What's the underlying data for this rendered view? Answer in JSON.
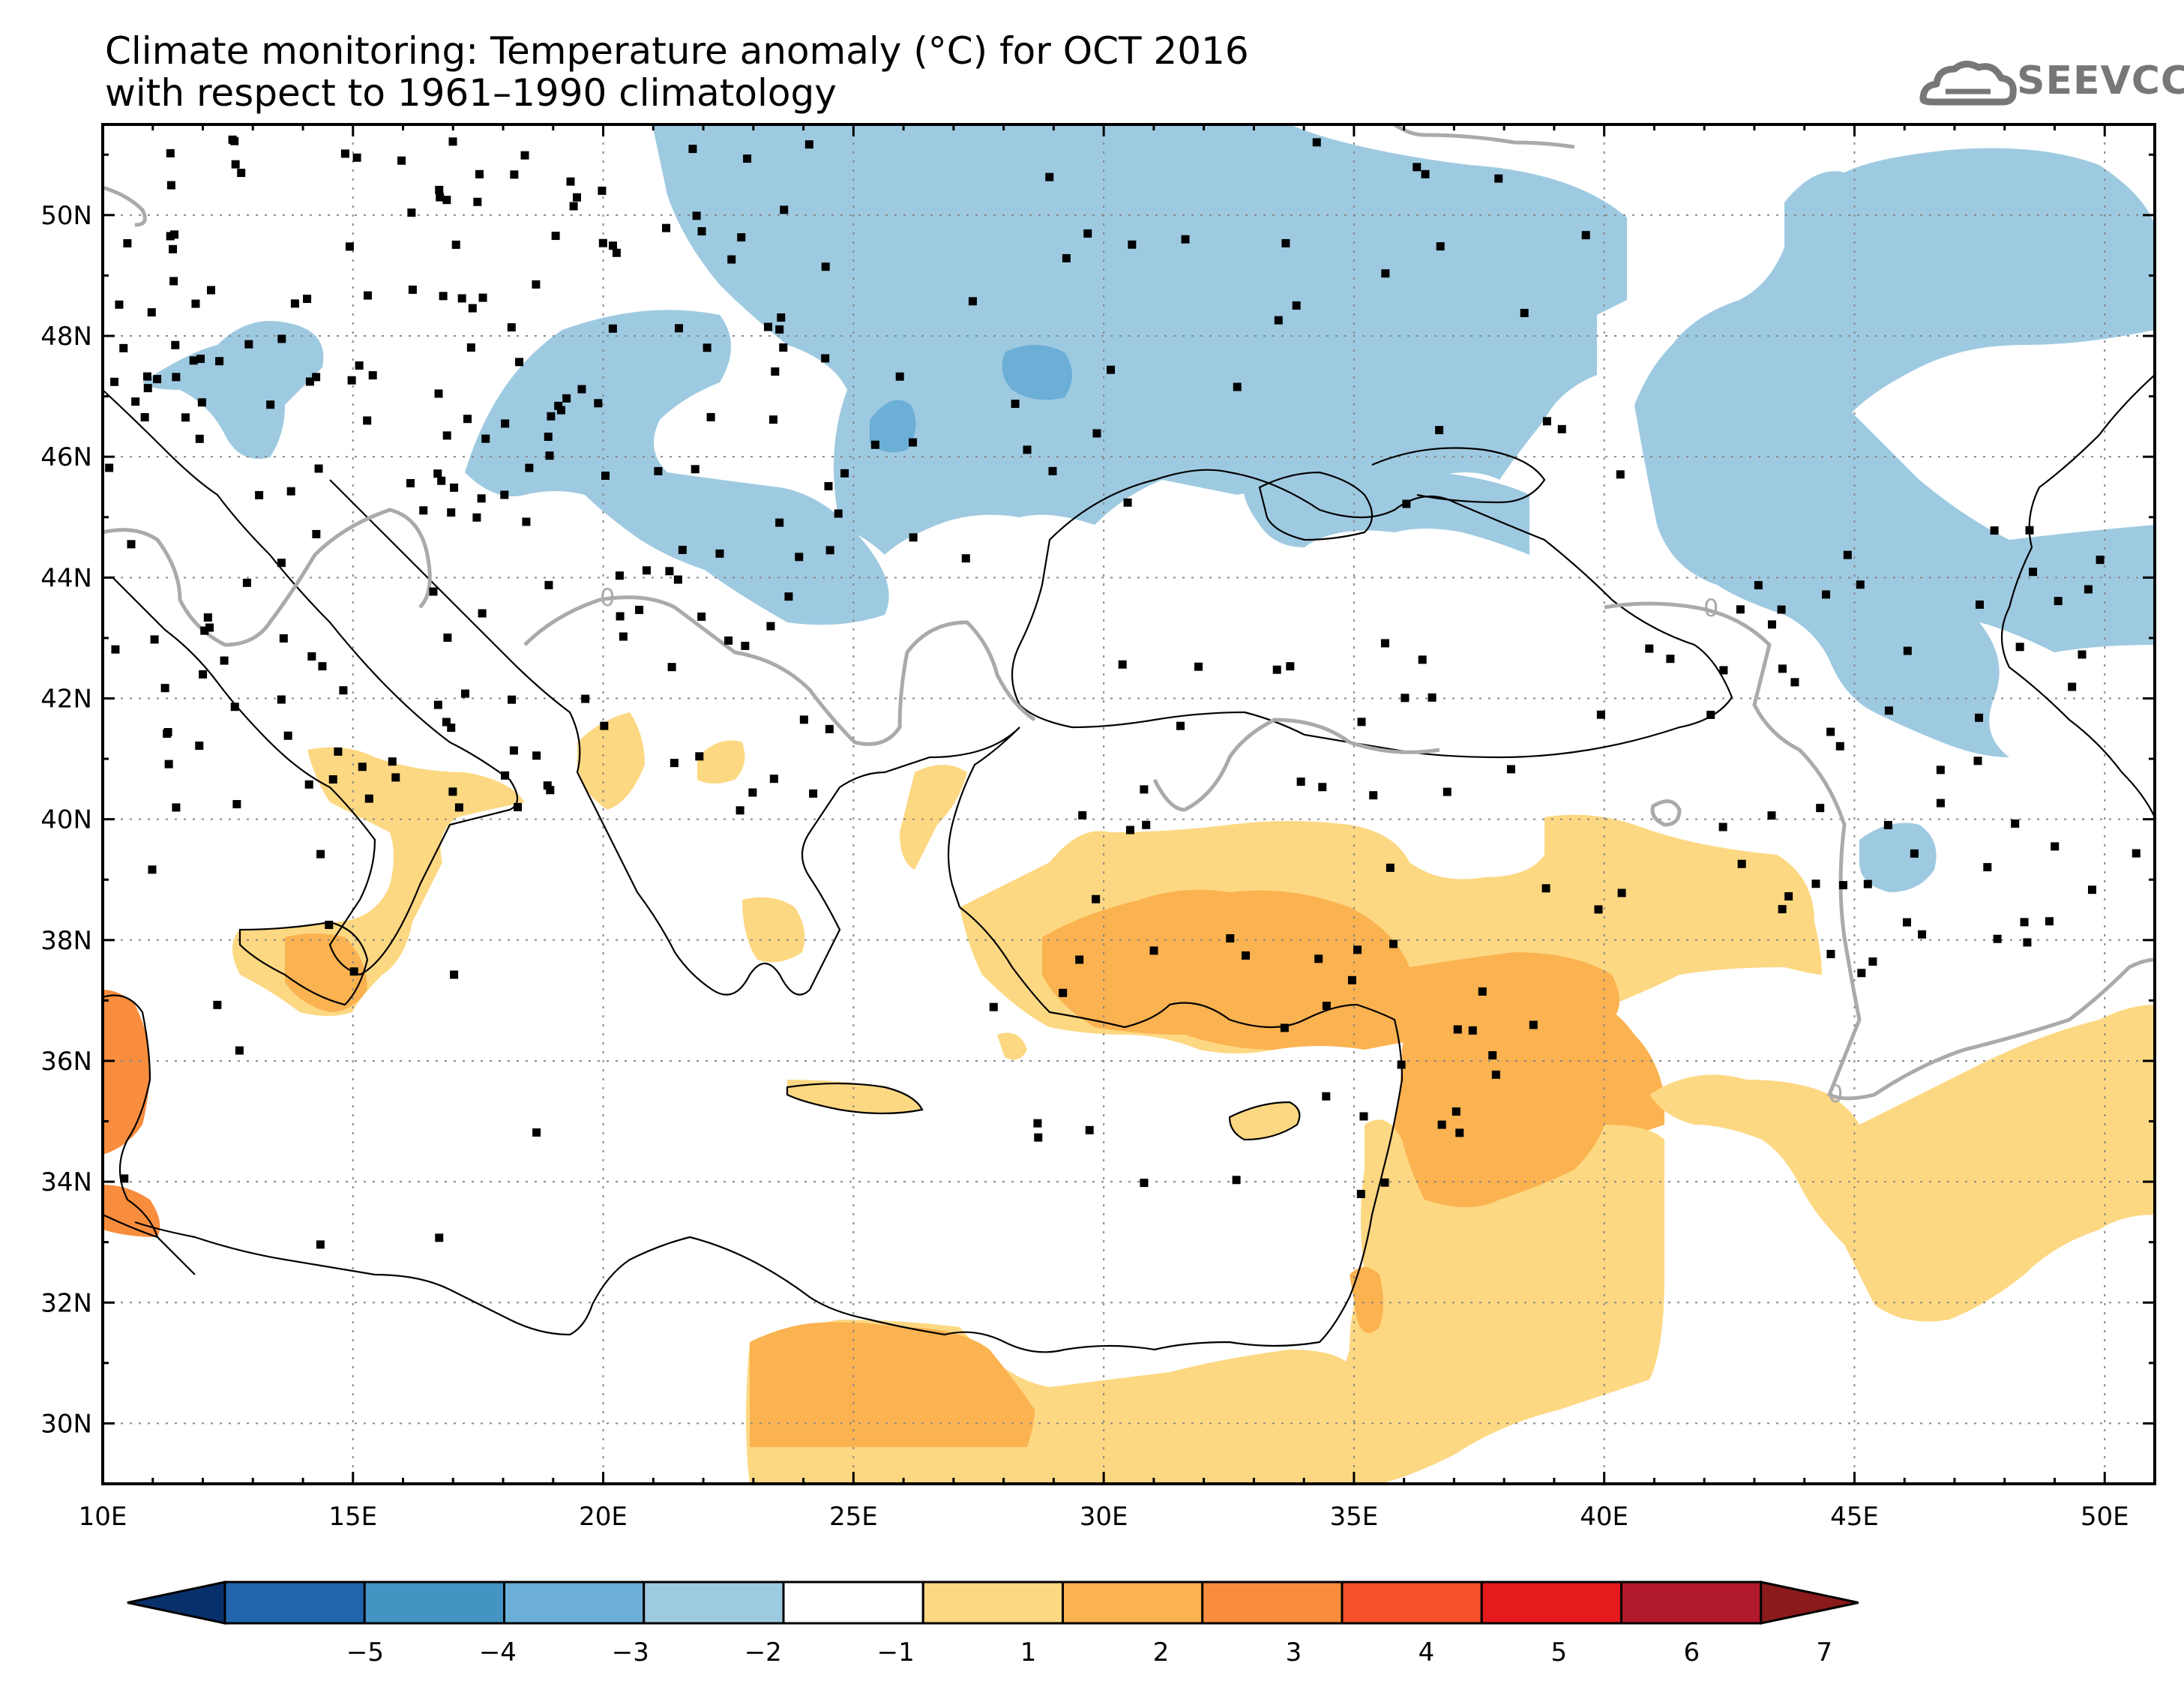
{
  "title": {
    "line1": "Climate monitoring: Temperature anomaly (°C) for OCT 2016",
    "line2": "with respect to 1961–1990 climatology"
  },
  "logo": {
    "text": "SEEVCCC"
  },
  "map": {
    "lon_ticks": [
      {
        "value": 10,
        "label": "10E"
      },
      {
        "value": 15,
        "label": "15E"
      },
      {
        "value": 20,
        "label": "20E"
      },
      {
        "value": 25,
        "label": "25E"
      },
      {
        "value": 30,
        "label": "30E"
      },
      {
        "value": 35,
        "label": "35E"
      },
      {
        "value": 40,
        "label": "40E"
      },
      {
        "value": 45,
        "label": "45E"
      },
      {
        "value": 50,
        "label": "50E"
      }
    ],
    "lat_ticks": [
      {
        "value": 30,
        "label": "30N"
      },
      {
        "value": 32,
        "label": "32N"
      },
      {
        "value": 34,
        "label": "34N"
      },
      {
        "value": 36,
        "label": "36N"
      },
      {
        "value": 38,
        "label": "38N"
      },
      {
        "value": 40,
        "label": "40N"
      },
      {
        "value": 42,
        "label": "42N"
      },
      {
        "value": 44,
        "label": "44N"
      },
      {
        "value": 46,
        "label": "46N"
      },
      {
        "value": 48,
        "label": "48N"
      },
      {
        "value": 50,
        "label": "50N"
      }
    ],
    "lon_range": [
      10,
      51
    ],
    "lat_range": [
      29,
      51.5
    ],
    "contour_label": "0",
    "colors": {
      "blue_light": "#9ecae1",
      "blue_mid": "#6baed6",
      "yellow": "#fdd882",
      "orange_light": "#fbb250",
      "orange": "#f88d3d"
    }
  },
  "colorbar": {
    "labels": [
      "−5",
      "−4",
      "−3",
      "−2",
      "−1",
      "1",
      "2",
      "3",
      "4",
      "5",
      "6",
      "7"
    ],
    "colors": [
      "#08306b",
      "#2166ac",
      "#4393c3",
      "#6baed6",
      "#9ecae1",
      "#ffffff",
      "#fdd882",
      "#fbb250",
      "#f88d3d",
      "#f4502a",
      "#e41a1c",
      "#b2182b",
      "#8b1a1a"
    ]
  }
}
